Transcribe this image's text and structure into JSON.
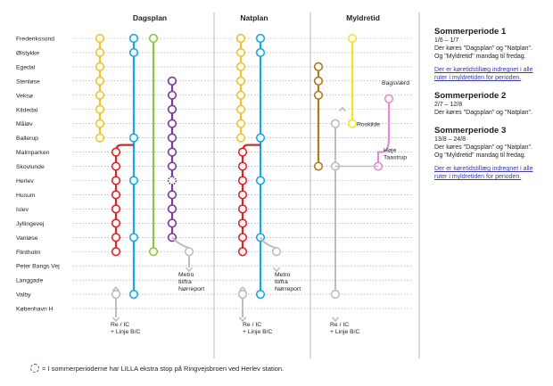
{
  "headers": {
    "dagsplan": "Dagsplan",
    "natplan": "Natplan",
    "myldretid": "Myldretid"
  },
  "stations": [
    "Frederikssund",
    "Ølstykke",
    "Egedal",
    "Stenløse",
    "Veksø",
    "Kildedal",
    "Måløv",
    "Ballerup",
    "Malmparken",
    "Skovlunde",
    "Herlev",
    "Husum",
    "Islev",
    "Jyllingevej",
    "Vanløse",
    "Flintholm",
    "Peter Bangs Vej",
    "Langgade",
    "Valby",
    "København H"
  ],
  "labels": {
    "metro_day": [
      "Metro",
      "til/fra",
      "Nørreport"
    ],
    "metro_night": [
      "Metro",
      "til/fra",
      "Nørreport"
    ],
    "re_day": [
      "Re / IC",
      "+ Linje B/C"
    ],
    "re_night": [
      "Re / IC",
      "+ Linje B/C"
    ],
    "re_rush": [
      "Re / IC",
      "+ Linje B/C"
    ],
    "bagsvaerd": "Bagsværd",
    "roskilde": "Roskilde",
    "hoje": [
      "Høje",
      "Taastrup"
    ]
  },
  "sidebar": {
    "periods": [
      {
        "title": "Sommerperiode 1",
        "dates": "1/6 – 1/7",
        "lines": [
          "Der køres \"Dagsplan\" og \"Natplan\".",
          "Og \"Myldretid\" mandag til fredag."
        ],
        "note": [
          "Der er køretidstillæg indregnet i alle",
          "ruter i myldretiden for perioden."
        ]
      },
      {
        "title": "Sommerperiode 2",
        "dates": "2/7 – 12/8",
        "lines": [
          "Der køres \"Dagsplan\" og \"Natplan\"."
        ],
        "note": []
      },
      {
        "title": "Sommerperiode 3",
        "dates": "13/8 – 24/8",
        "lines": [
          "Der køres \"Dagsplan\" og \"Natplan\".",
          "Og \"Myldretid\" mandag til fredag."
        ],
        "note": [
          "Der er køretidstillæg indregnet i alle",
          "ruter i myldretiden for perioden."
        ]
      }
    ]
  },
  "footnote": "= I sommerperioderne har LILLA ekstra stop på Ringvejsbroen ved Herlev station.",
  "colors": {
    "yellow": "#f3c230",
    "blue": "#1aa7e0",
    "green": "#8ec641",
    "red": "#d8252a",
    "purple": "#7a3a96",
    "grey": "#bdbdbd",
    "brown": "#a97a22",
    "lime": "#eee52a",
    "pink": "#e78ad2"
  }
}
